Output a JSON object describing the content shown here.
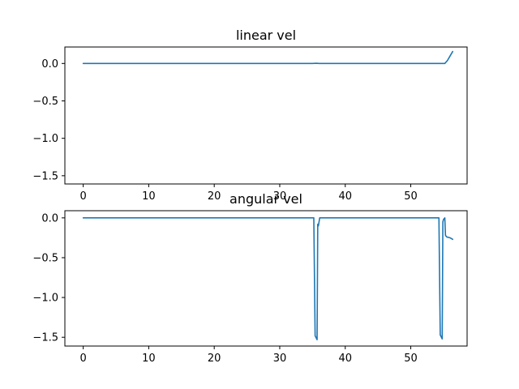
{
  "chart_data": [
    {
      "type": "line",
      "title": "linear vel",
      "xlabel": "",
      "ylabel": "",
      "xlim": [
        -2.8,
        58.6
      ],
      "ylim": [
        -1.61,
        0.22
      ],
      "xticks": [
        0,
        10,
        20,
        30,
        40,
        50
      ],
      "yticks": [
        0.0,
        -0.5,
        -1.0,
        -1.5
      ],
      "xtick_labels": [
        "0",
        "10",
        "20",
        "30",
        "40",
        "50"
      ],
      "ytick_labels": [
        "0.0",
        "−0.5",
        "−1.0",
        "−1.5"
      ],
      "grid": false,
      "series": [
        {
          "color": "#1f77b4",
          "x": [
            0,
            10,
            20,
            30,
            35,
            35.6,
            36,
            40,
            50,
            54,
            55.2,
            55.6,
            56.0,
            56.4
          ],
          "y": [
            0.0,
            0.0,
            0.0,
            0.0,
            0.0,
            0.003,
            0.0,
            0.0,
            0.0,
            0.0,
            0.0,
            0.04,
            0.1,
            0.16
          ]
        }
      ]
    },
    {
      "type": "line",
      "title": "angular vel",
      "xlabel": "",
      "ylabel": "",
      "xlim": [
        -2.8,
        58.6
      ],
      "ylim": [
        -1.61,
        0.09
      ],
      "xticks": [
        0,
        10,
        20,
        30,
        40,
        50
      ],
      "yticks": [
        0.0,
        -0.5,
        -1.0,
        -1.5
      ],
      "xtick_labels": [
        "0",
        "10",
        "20",
        "30",
        "40",
        "50"
      ],
      "ytick_labels": [
        "0.0",
        "−0.5",
        "−1.0",
        "−1.5"
      ],
      "grid": false,
      "series": [
        {
          "color": "#1f77b4",
          "x": [
            0,
            10,
            20,
            30,
            35.2,
            35.4,
            35.7,
            35.8,
            35.9,
            36.0,
            36.1,
            36.3,
            40,
            50,
            54.3,
            54.5,
            54.8,
            54.9,
            55.0,
            55.2,
            55.3,
            55.5,
            56.0,
            56.4
          ],
          "y": [
            0.0,
            0.0,
            0.0,
            0.0,
            0.0,
            -1.48,
            -1.53,
            -0.08,
            -0.1,
            -0.05,
            0.0,
            0.0,
            0.0,
            0.0,
            0.0,
            -1.47,
            -1.52,
            -0.05,
            -0.02,
            0.0,
            -0.22,
            -0.24,
            -0.25,
            -0.27
          ]
        }
      ]
    }
  ]
}
